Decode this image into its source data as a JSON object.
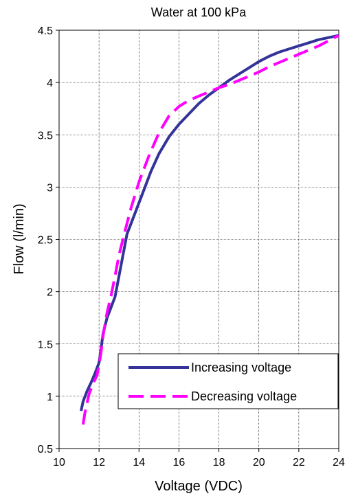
{
  "chart_data": {
    "type": "line",
    "title": "Water at 100 kPa",
    "xlabel": "Voltage (VDC)",
    "ylabel": "Flow (l/min)",
    "xlim": [
      10,
      24
    ],
    "ylim": [
      0.5,
      4.5
    ],
    "xticks": [
      10,
      12,
      14,
      16,
      18,
      20,
      22,
      24
    ],
    "yticks": [
      0.5,
      1,
      1.5,
      2,
      2.5,
      3,
      3.5,
      4,
      4.5
    ],
    "xtick_labels": [
      "10",
      "12",
      "14",
      "16",
      "18",
      "20",
      "22",
      "24"
    ],
    "ytick_labels": [
      "0.5",
      "1",
      "1.5",
      "2",
      "2.5",
      "3",
      "3.5",
      "4",
      "4.5"
    ],
    "grid": true,
    "legend_position": "bottom-right",
    "series": [
      {
        "name": "Increasing voltage",
        "color": "#333399",
        "style": "solid",
        "x": [
          11.1,
          11.2,
          11.4,
          11.6,
          11.8,
          12.0,
          12.1,
          12.2,
          12.4,
          12.6,
          12.8,
          13.0,
          13.2,
          13.4,
          13.8,
          14.2,
          14.6,
          15.0,
          15.5,
          16.0,
          16.5,
          17.0,
          17.5,
          18.0,
          18.5,
          19.0,
          19.5,
          20.0,
          20.5,
          21.0,
          21.5,
          22.0,
          22.5,
          23.0,
          23.5,
          24.0
        ],
        "y": [
          0.86,
          0.95,
          1.05,
          1.13,
          1.22,
          1.32,
          1.45,
          1.6,
          1.75,
          1.85,
          1.95,
          2.15,
          2.35,
          2.55,
          2.75,
          2.95,
          3.15,
          3.32,
          3.48,
          3.6,
          3.7,
          3.8,
          3.88,
          3.95,
          4.02,
          4.08,
          4.14,
          4.2,
          4.25,
          4.29,
          4.32,
          4.35,
          4.38,
          4.41,
          4.43,
          4.45
        ]
      },
      {
        "name": "Decreasing voltage",
        "color": "#ff00ff",
        "style": "dashed",
        "x": [
          11.2,
          11.3,
          11.5,
          11.7,
          11.9,
          12.0,
          12.1,
          12.2,
          12.4,
          12.6,
          12.8,
          13.0,
          13.3,
          13.6,
          14.0,
          14.5,
          15.0,
          15.5,
          16.0,
          16.5,
          17.0,
          17.5,
          18.0,
          18.5,
          19.0,
          19.5,
          20.0,
          20.5,
          21.0,
          21.5,
          22.0,
          22.5,
          23.0,
          23.5,
          24.0
        ],
        "y": [
          0.73,
          0.85,
          1.02,
          1.12,
          1.2,
          1.3,
          1.42,
          1.58,
          1.8,
          1.96,
          2.15,
          2.35,
          2.58,
          2.8,
          3.05,
          3.3,
          3.52,
          3.68,
          3.77,
          3.83,
          3.87,
          3.91,
          3.95,
          3.98,
          4.02,
          4.06,
          4.1,
          4.15,
          4.19,
          4.23,
          4.27,
          4.31,
          4.35,
          4.4,
          4.45
        ]
      }
    ]
  }
}
